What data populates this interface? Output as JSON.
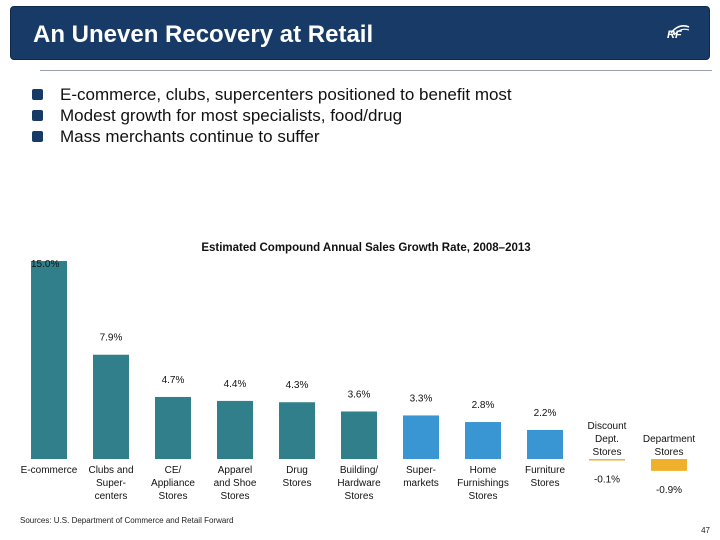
{
  "slide": {
    "title": "An Uneven Recovery at Retail",
    "logo_text": "RF",
    "bullets": [
      "E-commerce, clubs, supercenters positioned to benefit most",
      "Modest growth for most specialists, food/drug",
      "Mass merchants continue to suffer"
    ],
    "source": "Sources: U.S. Department of Commerce and Retail Forward",
    "page_number": "47"
  },
  "colors": {
    "header_bg": "#173a66",
    "bar_teal": "#317f8b",
    "bar_blue": "#3a96d3",
    "bar_gold": "#efb12b"
  },
  "chart_data": {
    "type": "bar",
    "title": "Estimated Compound Annual Sales Growth Rate, 2008–2013",
    "ylim": [
      -0.9,
      15.0
    ],
    "categories": [
      [
        "E-commerce"
      ],
      [
        "Clubs and",
        "Super-",
        "centers"
      ],
      [
        "CE/",
        "Appliance",
        "Stores"
      ],
      [
        "Apparel",
        "and Shoe",
        "Stores"
      ],
      [
        "Drug",
        "Stores"
      ],
      [
        "Building/",
        "Hardware",
        "Stores"
      ],
      [
        "Super-",
        "markets"
      ],
      [
        "Home",
        "Furnishings",
        "Stores"
      ],
      [
        "Furniture",
        "Stores"
      ],
      [
        "Discount",
        "Dept.",
        "Stores"
      ],
      [
        "Department",
        "Stores"
      ]
    ],
    "values": [
      15.0,
      7.9,
      4.7,
      4.4,
      4.3,
      3.6,
      3.3,
      2.8,
      2.2,
      -0.1,
      -0.9
    ],
    "labels": [
      "15.0%",
      "7.9%",
      "4.7%",
      "4.4%",
      "4.3%",
      "3.6%",
      "3.3%",
      "2.8%",
      "2.2%",
      "-0.1%",
      "-0.9%"
    ],
    "bar_colors": [
      "teal",
      "teal",
      "teal",
      "teal",
      "teal",
      "teal",
      "blue",
      "blue",
      "blue",
      "gold",
      "gold"
    ]
  }
}
